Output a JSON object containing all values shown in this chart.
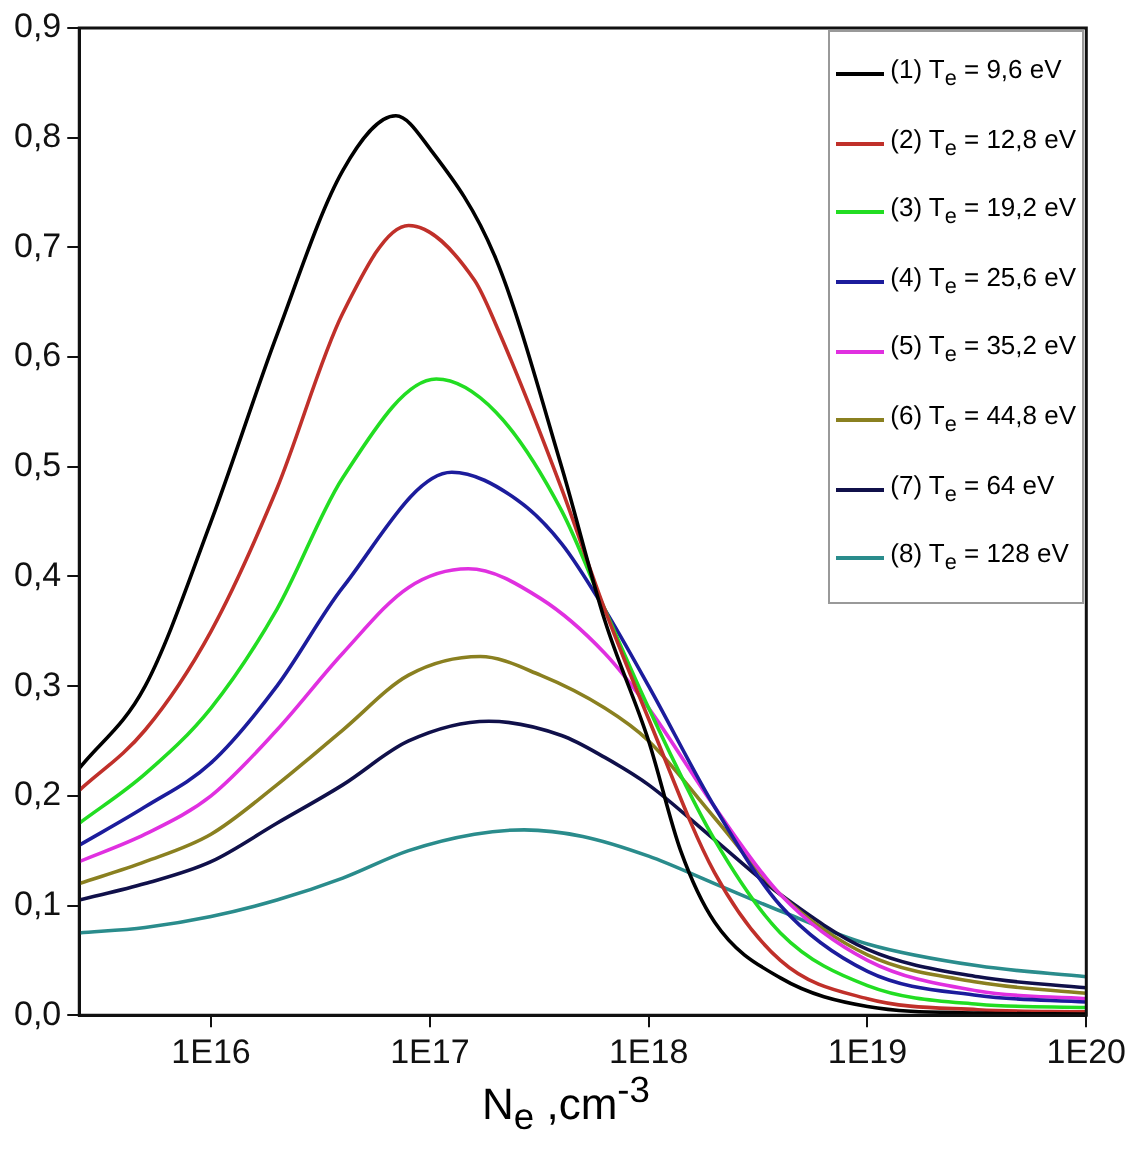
{
  "chart_data": {
    "type": "line",
    "xlabel": "N$_{e}$ ,cm$^{-3}$",
    "log": "x",
    "marker": "none",
    "legend": "top right",
    "grid": false,
    "xlim": [
      2500000000000000.0,
      1e+20
    ],
    "xticks": [
      {
        "value": 1e+16,
        "label": "1E16"
      },
      {
        "value": 1e+17,
        "label": "1E17"
      },
      {
        "value": 1e+18,
        "label": "1E18"
      },
      {
        "value": 1e+19,
        "label": "1E19"
      },
      {
        "value": 1e+20,
        "label": "1E20"
      }
    ],
    "ylim": [
      0,
      0.9
    ],
    "yticks": [
      {
        "value": 0,
        "label": "0,0"
      },
      {
        "value": 0.1,
        "label": "0,1"
      },
      {
        "value": 0.2,
        "label": "0,2"
      },
      {
        "value": 0.3,
        "label": "0,3"
      },
      {
        "value": 0.4,
        "label": "0,4"
      },
      {
        "value": 0.5,
        "label": "0,5"
      },
      {
        "value": 0.6,
        "label": "0,6"
      },
      {
        "value": 0.7,
        "label": "0,7"
      },
      {
        "value": 0.8,
        "label": "0,8"
      },
      {
        "value": 0.9,
        "label": "0,9"
      }
    ],
    "series": [
      {
        "name": "(1) T$_{e}$ = 9,6 eV",
        "color": "#000000",
        "x": [
          2500000000000000.0,
          5000000000000000.0,
          1e+16,
          2e+16,
          4e+16,
          7e+16,
          1e+17,
          2e+17,
          4e+17,
          6.3e+17,
          1e+18,
          1.4e+18,
          2e+18,
          4e+18,
          1e+19,
          3.2e+19,
          1e+20
        ],
        "values": [
          0.225,
          0.3,
          0.45,
          0.62,
          0.77,
          0.82,
          0.79,
          0.69,
          0.5,
          0.36,
          0.25,
          0.15,
          0.085,
          0.034,
          0.008,
          0.002,
          0.001
        ]
      },
      {
        "name": "(2) T$_{e}$ = 12,8 eV",
        "color": "#c0302a",
        "x": [
          2500000000000000.0,
          5000000000000000.0,
          1e+16,
          2e+16,
          4e+16,
          8e+16,
          1.6e+17,
          2e+17,
          4e+17,
          6.3e+17,
          1e+18,
          2e+18,
          4e+18,
          1e+19,
          3.2e+19,
          1e+20
        ],
        "values": [
          0.205,
          0.26,
          0.35,
          0.48,
          0.64,
          0.72,
          0.67,
          0.63,
          0.48,
          0.37,
          0.27,
          0.13,
          0.05,
          0.015,
          0.005,
          0.003
        ]
      },
      {
        "name": "(3) T$_{e}$ = 19,2 eV",
        "color": "#22dd22",
        "x": [
          2500000000000000.0,
          5000000000000000.0,
          1e+16,
          2e+16,
          4e+16,
          1.07e+17,
          2e+17,
          4e+17,
          6.3e+17,
          1e+18,
          2e+18,
          4e+18,
          1e+19,
          3.2e+19,
          1e+20
        ],
        "values": [
          0.175,
          0.22,
          0.28,
          0.37,
          0.49,
          0.58,
          0.55,
          0.46,
          0.37,
          0.28,
          0.16,
          0.075,
          0.027,
          0.01,
          0.007
        ]
      },
      {
        "name": "(4) T$_{e}$ = 25,6 eV",
        "color": "#1c1c9c",
        "x": [
          2500000000000000.0,
          5000000000000000.0,
          1e+16,
          2e+16,
          4e+16,
          1.26e+17,
          2.5e+17,
          4e+17,
          6.3e+17,
          1e+18,
          2e+18,
          4e+18,
          1e+19,
          3.2e+19,
          1e+20
        ],
        "values": [
          0.155,
          0.19,
          0.23,
          0.3,
          0.39,
          0.495,
          0.47,
          0.43,
          0.37,
          0.3,
          0.19,
          0.1,
          0.04,
          0.018,
          0.012
        ]
      },
      {
        "name": "(5) T$_{e}$ = 35,2 eV",
        "color": "#e030e0",
        "x": [
          2500000000000000.0,
          5000000000000000.0,
          1e+16,
          2e+16,
          4e+16,
          8e+16,
          1.5e+17,
          3.2e+17,
          6.3e+17,
          1e+18,
          2e+18,
          4e+18,
          1e+19,
          3.2e+19,
          1e+20
        ],
        "values": [
          0.14,
          0.165,
          0.2,
          0.26,
          0.33,
          0.39,
          0.407,
          0.38,
          0.33,
          0.28,
          0.19,
          0.11,
          0.05,
          0.022,
          0.015
        ]
      },
      {
        "name": "(6) T$_{e}$ = 44,8 eV",
        "color": "#8a8020",
        "x": [
          2500000000000000.0,
          5000000000000000.0,
          1e+16,
          2e+16,
          4e+16,
          8e+16,
          1.7e+17,
          3.2e+17,
          6.3e+17,
          1e+18,
          2e+18,
          4e+18,
          1e+19,
          3.2e+19,
          1e+20
        ],
        "values": [
          0.12,
          0.14,
          0.165,
          0.21,
          0.26,
          0.31,
          0.327,
          0.31,
          0.28,
          0.25,
          0.18,
          0.11,
          0.055,
          0.03,
          0.02
        ]
      },
      {
        "name": "(7) T$_{e}$ = 64 eV",
        "color": "#10104a",
        "x": [
          2500000000000000.0,
          5000000000000000.0,
          1e+16,
          2e+16,
          4e+16,
          8e+16,
          1.86e+17,
          4e+17,
          6.3e+17,
          1e+18,
          2e+18,
          4e+18,
          1e+19,
          3.2e+19,
          1e+20
        ],
        "values": [
          0.105,
          0.12,
          0.14,
          0.175,
          0.21,
          0.25,
          0.268,
          0.255,
          0.235,
          0.21,
          0.16,
          0.11,
          0.06,
          0.035,
          0.025
        ]
      },
      {
        "name": "(8) T$_{e}$ = 128 eV",
        "color": "#2a8c8c",
        "x": [
          2500000000000000.0,
          5000000000000000.0,
          1e+16,
          2e+16,
          4e+16,
          8e+16,
          1.6e+17,
          2.7e+17,
          5e+17,
          1e+18,
          2e+18,
          4e+18,
          1e+19,
          3.2e+19,
          1e+20
        ],
        "values": [
          0.075,
          0.08,
          0.09,
          0.105,
          0.125,
          0.15,
          0.165,
          0.169,
          0.163,
          0.145,
          0.12,
          0.095,
          0.065,
          0.045,
          0.035
        ]
      }
    ]
  }
}
